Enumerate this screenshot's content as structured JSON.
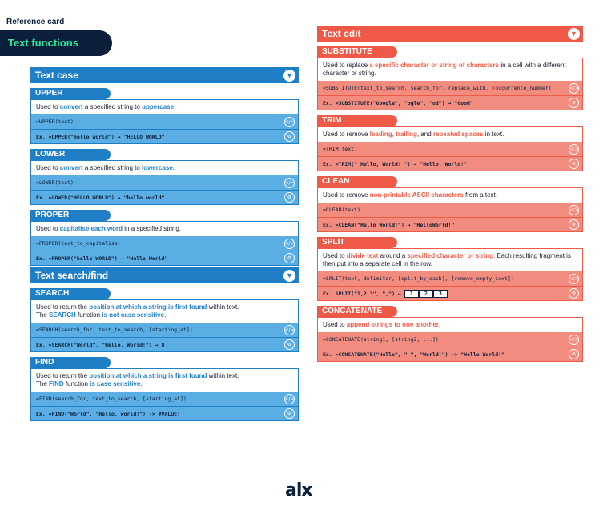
{
  "header": {
    "reference": "Reference card",
    "title": "Text functions"
  },
  "text_case": {
    "title": "Text case",
    "cards": [
      {
        "name": "UPPER",
        "d1": "Used to ",
        "k1": "convert",
        "d2": " a specified string to ",
        "k2": "uppercase",
        "d3": ".",
        "syntax": "=UPPER(text)",
        "example": "Ex. =UPPER(\"hello world\") → \"HELLO WORLD\""
      },
      {
        "name": "LOWER",
        "d1": "Used to ",
        "k1": "convert",
        "d2": " a specified string to ",
        "k2": "lowercase",
        "d3": ".",
        "syntax": "=LOWER(text)",
        "example": "Ex. =LOWER(\"HELLO WORLD\") → \"hello world\""
      },
      {
        "name": "PROPER",
        "d1": "Used to ",
        "k1": "capitalise each word",
        "d2": " in a specified string.",
        "syntax": "=PROPER(text_to_capitalise)",
        "example": "Ex. =PROPER(\"hello WORLD\") → \"Hello World\""
      }
    ]
  },
  "search_find": {
    "title": "Text search/find",
    "cards": [
      {
        "name": "SEARCH",
        "d1": "Used to return the ",
        "k1": "position at which a string is first found",
        "d2": " within text.",
        "d3": "The ",
        "k2": "SEARCH",
        "d4": " function ",
        "k3": "is not case sensitive",
        "d5": ".",
        "syntax": "=SEARCH(search_for, text_to_search, [starting_at])",
        "example": "Ex. =SEARCH(\"World\", \"Hello, World!\") →  8"
      },
      {
        "name": "FIND",
        "d1": "Used to return the ",
        "k1": "position at which a string is first found",
        "d2": " within text.",
        "d3": "The ",
        "k2": "FIND",
        "d4": " function ",
        "k3": "is case sensitive",
        "d5": ".",
        "syntax": "=FIND(search_for, text_to_search, [starting_at])",
        "example": "Ex. =FIND(\"World\", \"Hello, world!\") -> #VALUE!"
      }
    ]
  },
  "text_edit": {
    "title": "Text edit",
    "substitute": {
      "name": "SUBSTITUTE",
      "d1": "Used to replace ",
      "k1": "a specific character or string of characters",
      "d2": " in a cell with a different character or string.",
      "syntax": "=SUBSTITUTE(text_to_search, search_for, replace_with, [occurrence_number])",
      "example": "Ex. =SUBSTITUTE(\"Google\", \"ogle\", \"od\") → \"Good\""
    },
    "trim": {
      "name": "TRIM",
      "d1": "Used to remove ",
      "k1": "leading",
      "d2": ", ",
      "k2": "trailing",
      "d3": ", and ",
      "k3": "repeated spaces",
      "d4": " in text.",
      "syntax": "=TRIM(text)",
      "example": "Ex. =TRIM(\" Hello, World! \") → \"Hello, World!\""
    },
    "clean": {
      "name": "CLEAN",
      "d1": "Used to remove ",
      "k1": "non-printable ASCII characters",
      "d2": " from a text.",
      "syntax": "=CLEAN(text)",
      "example": "Ex. =CLEAN(\"Hello   World!\") →  \"HelloWorld!\""
    },
    "split": {
      "name": "SPLIT",
      "d1": "Used to ",
      "k1": "divide text",
      "d2": " around a ",
      "k2": "specified character or string",
      "d3": ". Each resulting fragment is then put into a separate cell in the row.",
      "syntax": "=SPLIT(text, delimiter, [split_by_each], [remove_empty_text])",
      "example": "Ex. SPLIT(\"1,2,3\", \",\") →",
      "cells": [
        "1",
        "2",
        "3"
      ]
    },
    "concatenate": {
      "name": "CONCATENATE",
      "d1": "Used to ",
      "k1": "append strings to one another",
      "d2": ".",
      "syntax": "=CONCATENATE(string1, [string2, ...])",
      "example": "Ex. =CONCATENATE(\"Hello\", \" \", \"World!\") -> \"Hello World!\""
    }
  },
  "icons": {
    "section_toggle": "chevron-down-icon",
    "syntax": "code-icon",
    "example": "gear-icon"
  },
  "colors": {
    "navy": "#0b1f3a",
    "green": "#2ee89a",
    "blue": "#1f7fc6",
    "light_blue": "#5aaee3",
    "red": "#ee5a47",
    "light_red": "#f28c7f"
  },
  "logo": "alx"
}
